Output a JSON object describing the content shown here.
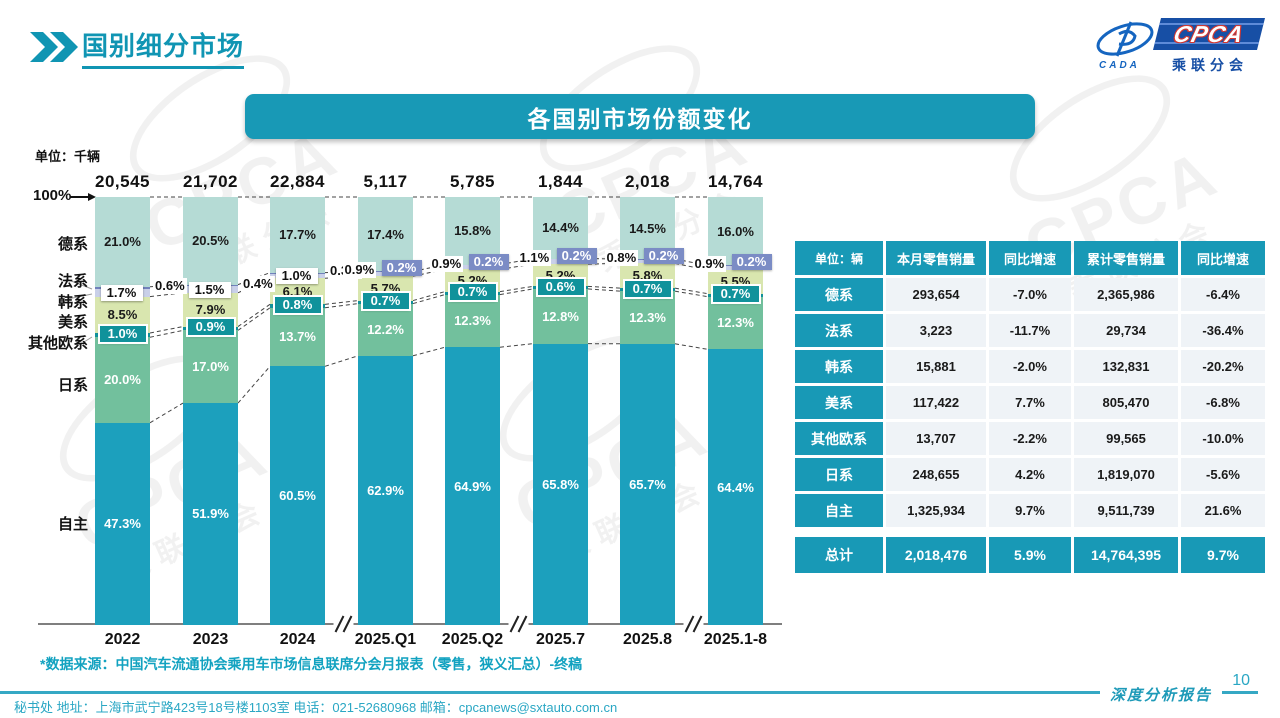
{
  "header": {
    "title": "国别细分市场"
  },
  "logo": {
    "cpca": "CPCA",
    "cada": "CADA",
    "subtitle": "乘联分会"
  },
  "banner": {
    "title": "各国别市场份额变化"
  },
  "chart_data": {
    "type": "bar",
    "stacked": true,
    "unit_label": "单位：千辆",
    "y_axis_top_label": "100%",
    "categories": [
      "2022",
      "2023",
      "2024",
      "2025.Q1",
      "2025.Q2",
      "2025.7",
      "2025.8",
      "2025.1-8"
    ],
    "totals": [
      "20,545",
      "21,702",
      "22,884",
      "5,117",
      "5,785",
      "1,844",
      "2,018",
      "14,764"
    ],
    "axis_break_after_indexes": [
      2,
      4,
      6
    ],
    "series": [
      {
        "name": "自主",
        "color": "#1CA0BD",
        "text_color": "#ffffff",
        "values": [
          47.3,
          51.9,
          60.5,
          62.9,
          64.9,
          65.8,
          65.7,
          64.4
        ]
      },
      {
        "name": "日系",
        "color": "#72C09D",
        "text_color": "#ffffff",
        "values": [
          20.0,
          17.0,
          13.7,
          12.2,
          12.3,
          12.8,
          12.3,
          12.3
        ]
      },
      {
        "name": "其他欧系",
        "color": "#10929B",
        "text_color": "#ffffff",
        "values": [
          1.0,
          0.9,
          0.8,
          0.7,
          0.7,
          0.6,
          0.7,
          0.7
        ]
      },
      {
        "name": "美系",
        "color": "#D9E6AF",
        "text_color": "#1a1a1a",
        "values": [
          8.5,
          7.9,
          6.1,
          5.7,
          5.2,
          5.2,
          5.8,
          5.5
        ]
      },
      {
        "name": "韩系",
        "color": "#C9D0E9",
        "text_color": "#1a1a1a",
        "values": [
          1.7,
          1.5,
          1.0,
          0.9,
          0.9,
          1.1,
          0.8,
          0.9
        ]
      },
      {
        "name": "法系",
        "color": "#7282BC",
        "text_color": "#ffffff",
        "values": [
          0.6,
          0.4,
          0.3,
          0.2,
          0.2,
          0.2,
          0.2,
          0.2
        ]
      },
      {
        "name": "德系",
        "color": "#B5DBD5",
        "text_color": "#1a1a1a",
        "values": [
          21.0,
          20.5,
          17.7,
          17.4,
          15.8,
          14.4,
          14.5,
          16.0
        ]
      }
    ]
  },
  "table": {
    "unit_header": "单位：辆",
    "headers": [
      "本月零售销量",
      "同比增速",
      "累计零售销量",
      "同比增速"
    ],
    "rows": [
      {
        "label": "德系",
        "cells": [
          "293,654",
          "-7.0%",
          "2,365,986",
          "-6.4%"
        ]
      },
      {
        "label": "法系",
        "cells": [
          "3,223",
          "-11.7%",
          "29,734",
          "-36.4%"
        ]
      },
      {
        "label": "韩系",
        "cells": [
          "15,881",
          "-2.0%",
          "132,831",
          "-20.2%"
        ]
      },
      {
        "label": "美系",
        "cells": [
          "117,422",
          "7.7%",
          "805,470",
          "-6.8%"
        ]
      },
      {
        "label": "其他欧系",
        "cells": [
          "13,707",
          "-2.2%",
          "99,565",
          "-10.0%"
        ]
      },
      {
        "label": "日系",
        "cells": [
          "248,655",
          "4.2%",
          "1,819,070",
          "-5.6%"
        ]
      },
      {
        "label": "自主",
        "cells": [
          "1,325,934",
          "9.7%",
          "9,511,739",
          "21.6%"
        ]
      }
    ],
    "total": {
      "label": "总计",
      "cells": [
        "2,018,476",
        "5.9%",
        "14,764,395",
        "9.7%"
      ]
    }
  },
  "footnote": "*数据来源：中国汽车流通协会乘用车市场信息联席分会月报表（零售，狭义汇总）-终稿",
  "footer": {
    "left": "秘书处  地址：上海市武宁路423号18号楼1103室 电话：021-52680968  邮箱：cpcanews@sxtauto.com.cn",
    "right": "深度分析报告",
    "page": "10"
  },
  "colors": {
    "accent_teal": "#1899B6",
    "logo_blue": "#174FA5",
    "logo_red": "#D4372F"
  }
}
